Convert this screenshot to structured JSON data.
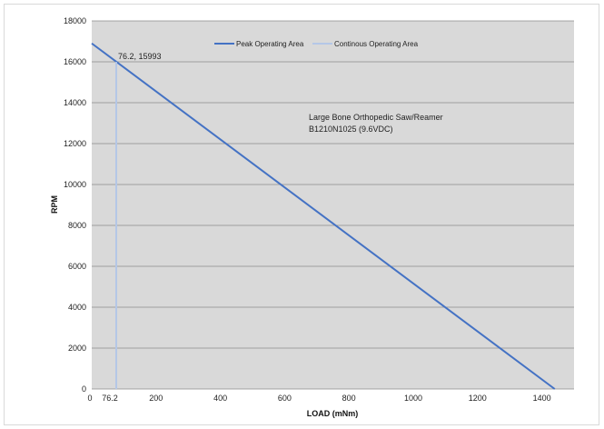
{
  "chart_data": {
    "type": "line",
    "xlabel": "LOAD (mNm)",
    "ylabel": "RPM",
    "xlim": [
      0,
      1500
    ],
    "ylim": [
      0,
      18000
    ],
    "x_ticks": [
      0,
      200,
      400,
      600,
      800,
      1000,
      1200,
      1400
    ],
    "y_ticks": [
      0,
      2000,
      4000,
      6000,
      8000,
      10000,
      12000,
      14000,
      16000,
      18000
    ],
    "grid": "horizontal",
    "legend_position": "top",
    "series": [
      {
        "name": "Peak Operating Area",
        "color": "#4472c4",
        "x": [
          0,
          1440
        ],
        "y": [
          16900,
          0
        ]
      },
      {
        "name": "Continous Operating Area",
        "color": "#b4c7e7",
        "x": [
          76.2,
          76.2
        ],
        "y": [
          0,
          15993
        ]
      }
    ],
    "annotations": {
      "point_label": "76.2, 15993",
      "x_marker_label": "76.2",
      "description_line1": "Large Bone Orthopedic Saw/Reamer",
      "description_line2": "B1210N1025 (9.6VDC)"
    }
  }
}
